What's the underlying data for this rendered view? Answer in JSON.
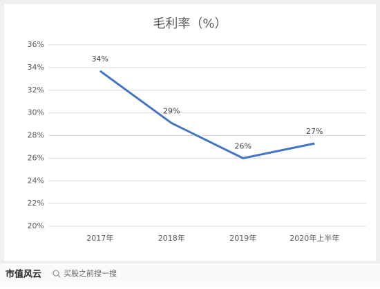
{
  "chart_data": {
    "type": "line",
    "title": "毛利率（%）",
    "categories": [
      "2017年",
      "2018年",
      "2019年",
      "2020年上半年"
    ],
    "series": [
      {
        "name": "毛利率",
        "color": "#4472c4",
        "values": [
          33.7,
          29.1,
          26.0,
          27.3
        ],
        "value_labels": [
          "34%",
          "29%",
          "26%",
          "27%"
        ]
      }
    ],
    "ylim": [
      20,
      36
    ],
    "yticks": [
      {
        "value": 20,
        "label": "20%"
      },
      {
        "value": 22,
        "label": "22%"
      },
      {
        "value": 24,
        "label": "24%"
      },
      {
        "value": 26,
        "label": "26%"
      },
      {
        "value": 28,
        "label": "28%"
      },
      {
        "value": 30,
        "label": "30%"
      },
      {
        "value": 32,
        "label": "32%"
      },
      {
        "value": 34,
        "label": "34%"
      },
      {
        "value": 36,
        "label": "36%"
      }
    ],
    "grid": true
  },
  "footer": {
    "brand": "市值风云",
    "search": "买股之前搜一搜"
  }
}
